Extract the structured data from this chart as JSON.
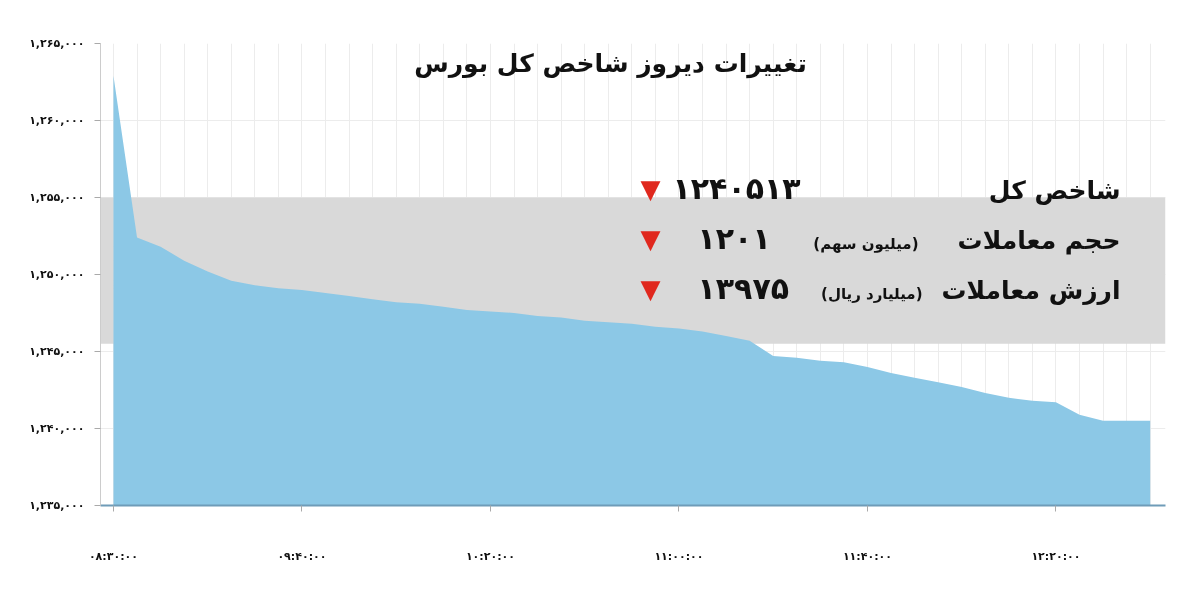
{
  "chart_data": {
    "type": "area",
    "title": "تغییرات دیروز شاخص کل بورس",
    "categories": [
      "۰۸:۳۰:۰۰",
      null,
      null,
      null,
      null,
      null,
      null,
      null,
      "۰۹:۴۰:۰۰",
      null,
      null,
      null,
      null,
      null,
      null,
      null,
      "۱۰:۲۰:۰۰",
      null,
      null,
      null,
      null,
      null,
      null,
      null,
      "۱۱:۰۰:۰۰",
      null,
      null,
      null,
      null,
      null,
      null,
      null,
      "۱۱:۴۰:۰۰",
      null,
      null,
      null,
      null,
      null,
      null,
      null,
      "۱۲:۲۰:۰۰",
      null,
      null,
      null,
      null
    ],
    "values": [
      1262900,
      1252400,
      1251800,
      1250900,
      1250200,
      1249600,
      1249300,
      1249100,
      1249000,
      1248800,
      1248600,
      1248400,
      1248200,
      1248100,
      1247900,
      1247700,
      1247600,
      1247500,
      1247300,
      1247200,
      1247000,
      1246900,
      1246800,
      1246600,
      1246500,
      1246300,
      1246000,
      1245700,
      1244700,
      1244600,
      1244400,
      1244300,
      1244000,
      1243600,
      1243300,
      1243000,
      1242700,
      1242300,
      1242000,
      1241800,
      1241700,
      1240900,
      1240500,
      1240500,
      1240500
    ],
    "color": "#8cc8e6",
    "ylim": [
      1235000,
      1265000
    ],
    "yticks": [
      {
        "value": 1235000,
        "label": "۱,۲۳۵,۰۰۰"
      },
      {
        "value": 1240000,
        "label": "۱,۲۴۰,۰۰۰"
      },
      {
        "value": 1245000,
        "label": "۱,۲۴۵,۰۰۰"
      },
      {
        "value": 1250000,
        "label": "۱,۲۵۰,۰۰۰"
      },
      {
        "value": 1255000,
        "label": "۱,۲۵۵,۰۰۰"
      },
      {
        "value": 1260000,
        "label": "۱,۲۶۰,۰۰۰"
      },
      {
        "value": 1265000,
        "label": "۱,۲۶۵,۰۰۰"
      }
    ],
    "grid": true,
    "bands": [
      {
        "axis": "y",
        "from": 1245500,
        "to": 1255000,
        "color": "#d9d9d9"
      }
    ],
    "annotations": [
      "شاخص کل",
      "▼ ۱۲۴۰۵۱۳",
      "حجم معاملات",
      "(میلیون سهم)",
      "▼ ۱۲۰۱",
      "ارزش معاملات",
      "(میلیارد ریال)",
      "▼ ۱۳۹۷۵"
    ]
  }
}
